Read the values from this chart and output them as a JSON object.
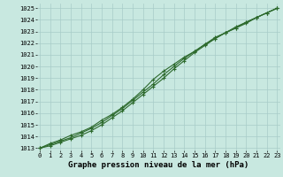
{
  "xlabel": "Graphe pression niveau de la mer (hPa)",
  "x": [
    0,
    1,
    2,
    3,
    4,
    5,
    6,
    7,
    8,
    9,
    10,
    11,
    12,
    13,
    14,
    15,
    16,
    17,
    18,
    19,
    20,
    21,
    22,
    23
  ],
  "line1": [
    1013.0,
    1013.4,
    1013.7,
    1014.1,
    1014.4,
    1014.8,
    1015.4,
    1015.9,
    1016.5,
    1017.2,
    1018.0,
    1018.9,
    1019.6,
    1020.2,
    1020.8,
    1021.3,
    1021.9,
    1022.5,
    1022.9,
    1023.3,
    1023.7,
    1024.2,
    1024.6,
    1025.0
  ],
  "line2": [
    1013.0,
    1013.3,
    1013.6,
    1013.9,
    1014.3,
    1014.7,
    1015.2,
    1015.8,
    1016.4,
    1017.1,
    1017.8,
    1018.5,
    1019.3,
    1020.0,
    1020.7,
    1021.3,
    1021.9,
    1022.4,
    1022.9,
    1023.3,
    1023.8,
    1024.2,
    1024.6,
    1025.0
  ],
  "line3": [
    1013.0,
    1013.2,
    1013.5,
    1013.8,
    1014.1,
    1014.5,
    1015.0,
    1015.6,
    1016.2,
    1016.9,
    1017.6,
    1018.3,
    1019.0,
    1019.8,
    1020.5,
    1021.2,
    1021.8,
    1022.4,
    1022.9,
    1023.4,
    1023.8,
    1024.2,
    1024.6,
    1025.0
  ],
  "line_color": "#2d6a2d",
  "bg_color": "#c8e8e0",
  "grid_color": "#a8ccc8",
  "ylim_min": 1012.8,
  "ylim_max": 1025.4,
  "yticks": [
    1013,
    1014,
    1015,
    1016,
    1017,
    1018,
    1019,
    1020,
    1021,
    1022,
    1023,
    1024,
    1025
  ],
  "xticks": [
    0,
    1,
    2,
    3,
    4,
    5,
    6,
    7,
    8,
    9,
    10,
    11,
    12,
    13,
    14,
    15,
    16,
    17,
    18,
    19,
    20,
    21,
    22,
    23
  ],
  "marker": "+",
  "markersize": 3.5,
  "linewidth": 0.8,
  "xlabel_fontsize": 6.5,
  "tick_fontsize": 5.0
}
